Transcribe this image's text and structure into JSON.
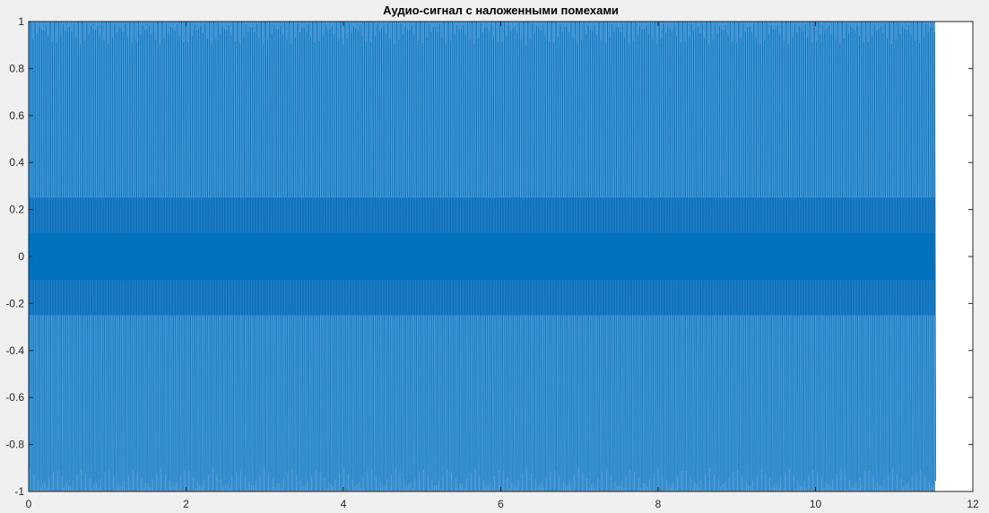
{
  "chart_data": {
    "type": "line",
    "title": "Аудио-сигнал с наложенными помехами",
    "xlabel": "",
    "ylabel": "",
    "xlim": [
      0,
      12
    ],
    "ylim": [
      -1,
      1
    ],
    "x_ticks": [
      0,
      2,
      4,
      6,
      8,
      10,
      12
    ],
    "y_ticks": [
      -1,
      -0.8,
      -0.6,
      -0.4,
      -0.2,
      0,
      0.2,
      0.4,
      0.6,
      0.8,
      1
    ],
    "x_tick_labels": [
      "0",
      "2",
      "4",
      "6",
      "8",
      "10",
      "12"
    ],
    "y_tick_labels": [
      "-1",
      "-0.8",
      "-0.6",
      "-0.4",
      "-0.2",
      "0",
      "0.2",
      "0.4",
      "0.6",
      "0.8",
      "1"
    ],
    "grid": false,
    "series": [
      {
        "color": "#0072bd",
        "x_range": [
          0,
          11.52
        ],
        "peak_amplitude": 1.0,
        "dense_band_amplitude": 0.25,
        "core_band_amplitude": 0.1
      }
    ]
  },
  "colors": {
    "figure_background": "#f0f0f0",
    "axes_background": "#ffffff",
    "line": "#0072bd",
    "axis": "#262626"
  }
}
